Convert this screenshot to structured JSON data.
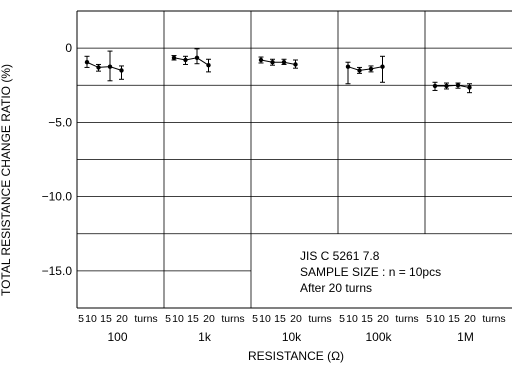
{
  "chart_data": {
    "type": "line",
    "ylabel": "TOTAL  RESISTANCE  CHANGE  RATIO (%)",
    "xlabel": "RESISTANCE (Ω)",
    "ylim": [
      -17.5,
      2.5
    ],
    "yticks": [
      {
        "value": 0,
        "label": "0"
      },
      {
        "value": -5,
        "label": "−5.0"
      },
      {
        "value": -10,
        "label": "−10.0"
      },
      {
        "value": -15,
        "label": "−15.0"
      }
    ],
    "groups": [
      "100",
      "1k",
      "10k",
      "100k",
      "1M"
    ],
    "turns_ticks": [
      "5",
      "10",
      "15",
      "20",
      "turns"
    ],
    "grid": true,
    "series": [
      {
        "group": "100",
        "x": [
          5,
          10,
          15,
          20
        ],
        "y": [
          -0.95,
          -1.3,
          -1.25,
          -1.5
        ],
        "err_high": [
          -0.55,
          -1.1,
          -0.2,
          -1.2
        ],
        "err_low": [
          -1.3,
          -1.55,
          -2.2,
          -2.1
        ]
      },
      {
        "group": "1k",
        "x": [
          5,
          10,
          15,
          20
        ],
        "y": [
          -0.65,
          -0.8,
          -0.65,
          -1.15
        ],
        "err_high": [
          -0.5,
          -0.55,
          -0.05,
          -0.75
        ],
        "err_low": [
          -0.8,
          -1.1,
          -1.05,
          -1.6
        ]
      },
      {
        "group": "10k",
        "x": [
          5,
          10,
          15,
          20
        ],
        "y": [
          -0.8,
          -0.95,
          -0.95,
          -1.1
        ],
        "err_high": [
          -0.6,
          -0.75,
          -0.75,
          -0.8
        ],
        "err_low": [
          -1.0,
          -1.15,
          -1.1,
          -1.35
        ]
      },
      {
        "group": "100k",
        "x": [
          5,
          10,
          15,
          20
        ],
        "y": [
          -1.25,
          -1.5,
          -1.4,
          -1.25
        ],
        "err_high": [
          -0.95,
          -1.3,
          -1.2,
          -0.55
        ],
        "err_low": [
          -2.4,
          -1.7,
          -1.6,
          -2.3
        ]
      },
      {
        "group": "1M",
        "x": [
          5,
          10,
          15,
          20
        ],
        "y": [
          -2.55,
          -2.55,
          -2.5,
          -2.65
        ],
        "err_high": [
          -2.3,
          -2.35,
          -2.35,
          -2.4
        ],
        "err_low": [
          -2.85,
          -2.75,
          -2.7,
          -3.0
        ]
      }
    ],
    "annotation": [
      "JIS  C  5261  7.8",
      "SAMPLE  SIZE : n = 10pcs",
      "After  20  turns"
    ]
  },
  "colors": {
    "ink": "#000000",
    "background": "#ffffff"
  }
}
